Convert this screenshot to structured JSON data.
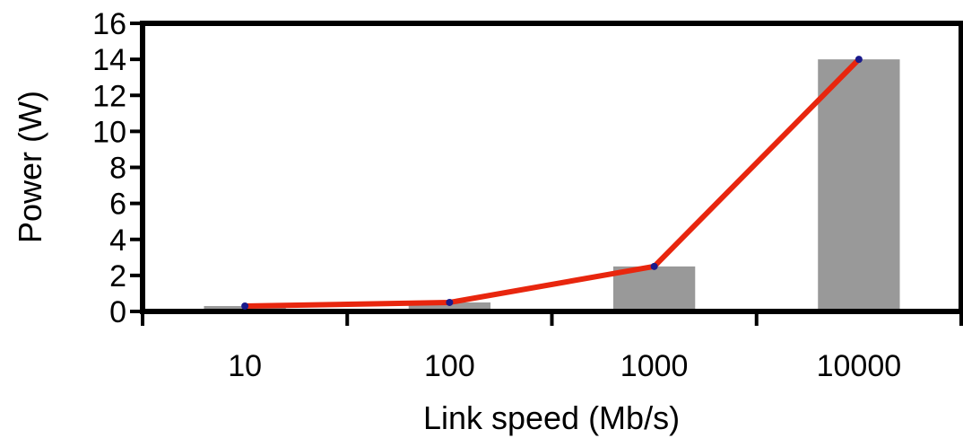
{
  "chart_data": {
    "type": "bar",
    "categories": [
      "10",
      "100",
      "1000",
      "10000"
    ],
    "series": [
      {
        "type": "bar",
        "values": [
          0.3,
          0.5,
          2.5,
          14.0
        ],
        "color": "#999999"
      },
      {
        "type": "line",
        "values": [
          0.3,
          0.5,
          2.5,
          14.0
        ],
        "color": "#e8260e",
        "marker_color": "#1a1a8c"
      }
    ],
    "xlabel": "Link speed (Mb/s)",
    "ylabel": "Power (W)",
    "ylim": [
      0,
      16
    ],
    "yticks": [
      "0",
      "2",
      "4",
      "6",
      "8",
      "10",
      "12",
      "14",
      "16"
    ],
    "grid": false
  }
}
